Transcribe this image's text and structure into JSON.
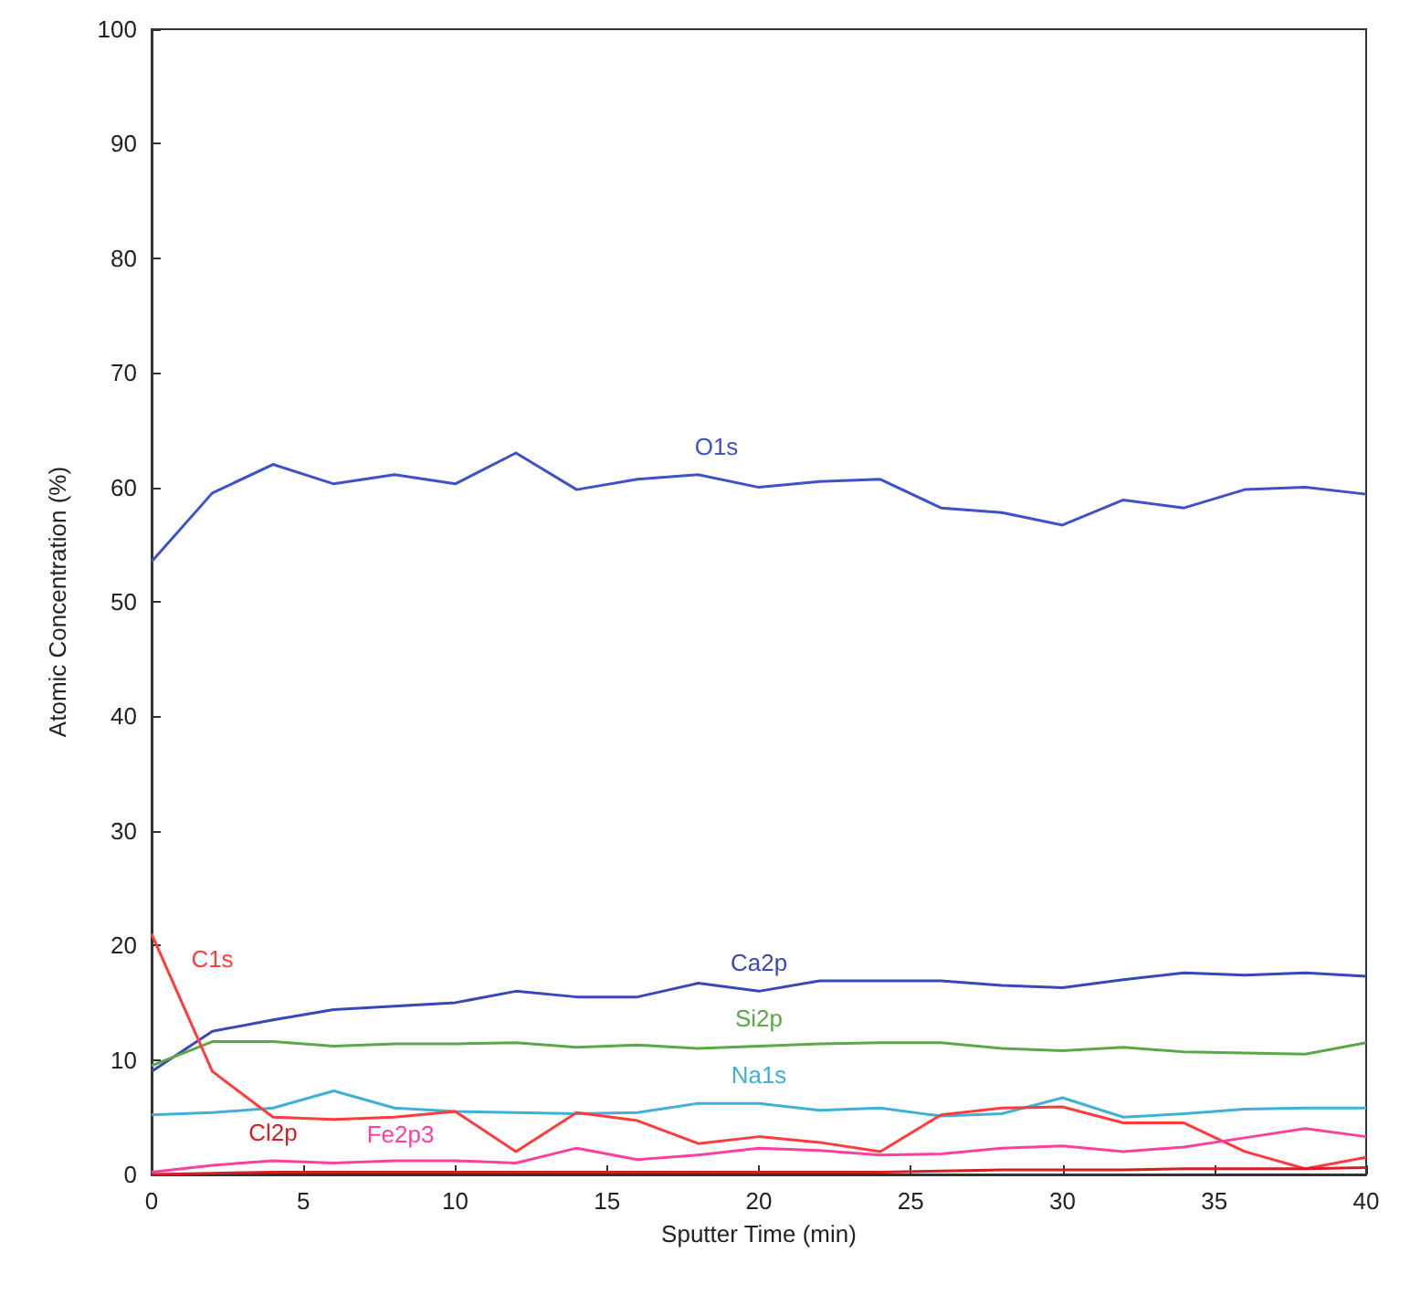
{
  "chart_data": {
    "type": "line",
    "xlabel": "Sputter Time (min)",
    "ylabel": "Atomic Concentration (%)",
    "x": [
      0,
      2,
      4,
      6,
      8,
      10,
      12,
      14,
      16,
      18,
      20,
      22,
      24,
      26,
      28,
      30,
      32,
      34,
      36,
      38,
      40
    ],
    "xlim": [
      0,
      40
    ],
    "xticks": [
      0,
      5,
      10,
      15,
      20,
      25,
      30,
      35,
      40
    ],
    "ylim": [
      0,
      100
    ],
    "yticks": [
      0,
      10,
      20,
      30,
      40,
      50,
      60,
      70,
      80,
      90,
      100
    ],
    "grid": false,
    "legend": false,
    "marker": "none",
    "line_style": "solid",
    "series": [
      {
        "name": "O1s",
        "color": "#3f51c8",
        "values": [
          53.5,
          59.5,
          62,
          60.3,
          61.1,
          60.3,
          63,
          59.8,
          60.7,
          61.1,
          60,
          60.5,
          60.7,
          58.2,
          57.8,
          56.7,
          58.9,
          58.2,
          59.8,
          60,
          59.4
        ]
      },
      {
        "name": "Ca2p",
        "color": "#3848b8",
        "values": [
          9,
          12.5,
          13.5,
          14.4,
          14.7,
          15,
          16,
          15.5,
          15.5,
          16.7,
          16,
          16.9,
          16.9,
          16.9,
          16.5,
          16.3,
          17,
          17.6,
          17.4,
          17.6,
          17.3
        ]
      },
      {
        "name": "Si2p",
        "color": "#5aa846",
        "values": [
          9.5,
          11.6,
          11.6,
          11.2,
          11.4,
          11.4,
          11.5,
          11.1,
          11.3,
          11,
          11.2,
          11.4,
          11.5,
          11.5,
          11,
          10.8,
          11.1,
          10.7,
          10.6,
          10.5,
          11.5
        ]
      },
      {
        "name": "Na1s",
        "color": "#3fb0d8",
        "values": [
          5.2,
          5.4,
          5.8,
          7.3,
          5.8,
          5.5,
          5.4,
          5.3,
          5.4,
          6.2,
          6.2,
          5.6,
          5.8,
          5.1,
          5.3,
          6.7,
          5,
          5.3,
          5.7,
          5.8,
          5.8
        ]
      },
      {
        "name": "C1s",
        "color": "#ff3b3b",
        "values": [
          21,
          9,
          5,
          4.8,
          5,
          5.5,
          2,
          5.4,
          4.7,
          2.7,
          3.3,
          2.8,
          2,
          5.2,
          5.8,
          5.9,
          4.5,
          4.5,
          2,
          0.5,
          1.5
        ]
      },
      {
        "name": "Fe2p3",
        "color": "#ff3fa0",
        "values": [
          0.2,
          0.8,
          1.2,
          1,
          1.2,
          1.2,
          1,
          2.3,
          1.3,
          1.7,
          2.3,
          2.1,
          1.7,
          1.8,
          2.3,
          2.5,
          2,
          2.4,
          3.2,
          4,
          3.3
        ]
      },
      {
        "name": "Cl2p",
        "color": "#d42020",
        "values": [
          0,
          0.1,
          0.2,
          0.2,
          0.2,
          0.2,
          0.2,
          0.2,
          0.2,
          0.2,
          0.2,
          0.2,
          0.2,
          0.3,
          0.4,
          0.4,
          0.4,
          0.5,
          0.5,
          0.5,
          0.6
        ]
      }
    ]
  }
}
